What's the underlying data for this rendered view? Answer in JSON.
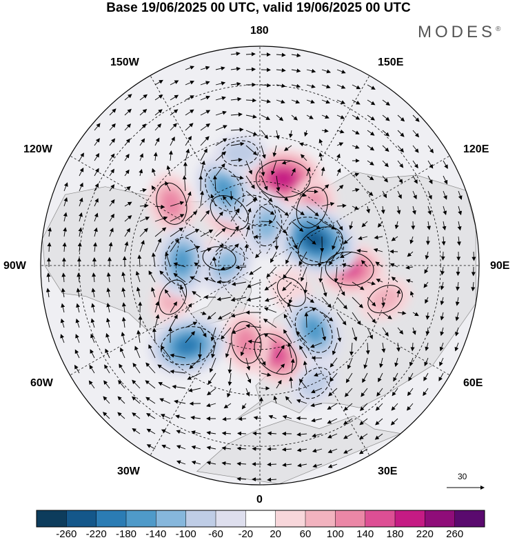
{
  "title": "Base 19/06/2025 00 UTC, valid 19/06/2025 00 UTC",
  "brand": {
    "name": "MODES",
    "mark": "®"
  },
  "map": {
    "projection": "north-polar-stereographic",
    "longitude_labels": {
      "top": "180",
      "top_left": "150W",
      "top_right": "150E",
      "upper_left": "120W",
      "upper_right": "120E",
      "left": "90W",
      "right": "90E",
      "lower_left": "60W",
      "lower_right": "60E",
      "bottom_left": "30W",
      "bottom_right": "30E",
      "bottom": "0"
    },
    "reference_vector": {
      "label": "30"
    }
  },
  "colorbar": {
    "tick_labels": [
      "-260",
      "-220",
      "-180",
      "-140",
      "-100",
      "-60",
      "-20",
      "20",
      "60",
      "100",
      "140",
      "180",
      "220",
      "260"
    ],
    "colors": [
      "#0d3c5c",
      "#14578a",
      "#2b7cb4",
      "#4f9ac9",
      "#86b7dc",
      "#bfcde6",
      "#dedfee",
      "#ffffff",
      "#f8d7db",
      "#f2b3bf",
      "#eb87a6",
      "#dd4f94",
      "#c51b84",
      "#8f0d79",
      "#5a0a6e"
    ]
  },
  "anomaly_centers": {
    "positive": [
      {
        "lon": 165,
        "lat": 58,
        "value": 180
      },
      {
        "lon": -150,
        "lat": 68,
        "value": 100
      },
      {
        "lon": -125,
        "lat": 52,
        "value": 100
      },
      {
        "lon": 138,
        "lat": 62,
        "value": 100
      },
      {
        "lon": 108,
        "lat": 67,
        "value": 140
      },
      {
        "lon": 88,
        "lat": 58,
        "value": 140
      },
      {
        "lon": 10,
        "lat": 58,
        "value": 140
      },
      {
        "lon": -10,
        "lat": 62,
        "value": 100
      },
      {
        "lon": -70,
        "lat": 57,
        "value": 60
      },
      {
        "lon": 75,
        "lat": 45,
        "value": 60
      },
      {
        "lon": -100,
        "lat": 75,
        "value": 40
      },
      {
        "lon": 50,
        "lat": 75,
        "value": 40
      }
    ],
    "negative": [
      {
        "lon": -175,
        "lat": 70,
        "value": -100
      },
      {
        "lon": -155,
        "lat": 60,
        "value": -140
      },
      {
        "lon": -93,
        "lat": 62,
        "value": -140
      },
      {
        "lon": -92,
        "lat": 78,
        "value": -100
      },
      {
        "lon": -42,
        "lat": 52,
        "value": -180
      },
      {
        "lon": 115,
        "lat": 68,
        "value": -220
      },
      {
        "lon": 40,
        "lat": 60,
        "value": -140
      },
      {
        "lon": 170,
        "lat": 75,
        "value": -100
      },
      {
        "lon": 25,
        "lat": 45,
        "value": -60
      },
      {
        "lon": -170,
        "lat": 50,
        "value": -60
      }
    ]
  }
}
